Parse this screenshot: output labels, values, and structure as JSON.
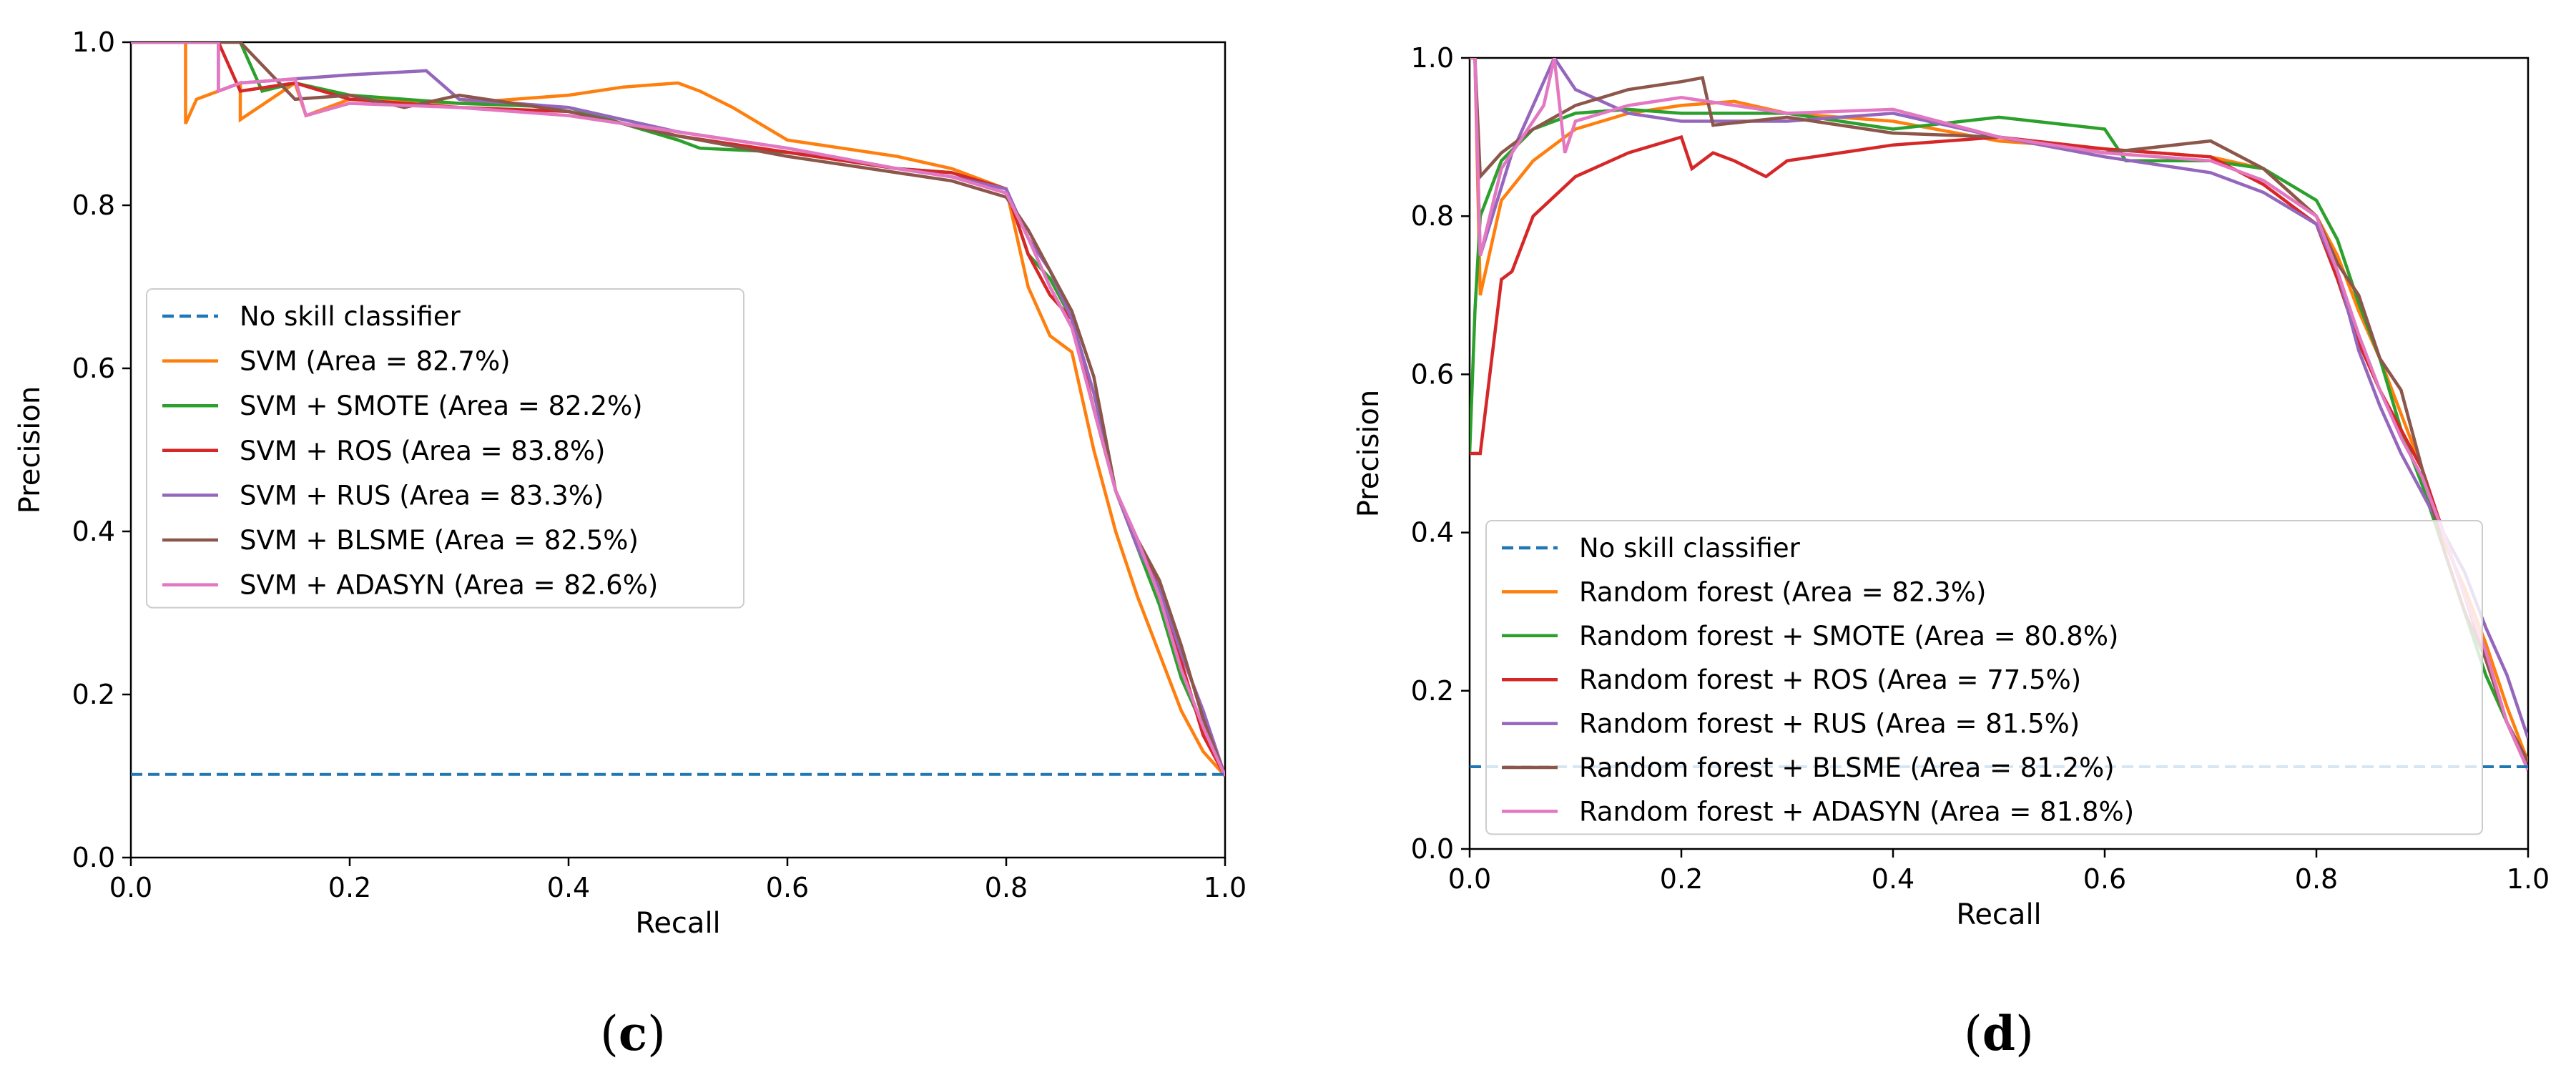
{
  "chart_data": [
    {
      "type": "line",
      "panel_label": "c",
      "title": "",
      "xlabel": "Recall",
      "ylabel": "Precision",
      "xlim": [
        0.0,
        1.0
      ],
      "ylim": [
        0.0,
        1.0
      ],
      "xticks": [
        "0.0",
        "0.2",
        "0.4",
        "0.6",
        "0.8",
        "1.0"
      ],
      "yticks": [
        "0.0",
        "0.2",
        "0.4",
        "0.6",
        "0.8",
        "1.0"
      ],
      "legend_position": "center-left",
      "baseline": {
        "name": "No skill classifier",
        "y": 0.102,
        "color": "#1f77b4"
      },
      "series": [
        {
          "name": "SVM (Area = 82.7%)",
          "color": "#ff7f0e",
          "x": [
            0.0,
            0.05,
            0.05,
            0.06,
            0.1,
            0.1,
            0.15,
            0.16,
            0.2,
            0.3,
            0.4,
            0.45,
            0.5,
            0.52,
            0.55,
            0.6,
            0.65,
            0.7,
            0.75,
            0.8,
            0.82,
            0.84,
            0.86,
            0.88,
            0.9,
            0.92,
            0.94,
            0.96,
            0.98,
            1.0
          ],
          "y": [
            1.0,
            1.0,
            0.9,
            0.93,
            0.95,
            0.905,
            0.95,
            0.91,
            0.93,
            0.925,
            0.935,
            0.945,
            0.95,
            0.94,
            0.92,
            0.88,
            0.87,
            0.86,
            0.845,
            0.82,
            0.7,
            0.64,
            0.62,
            0.5,
            0.4,
            0.32,
            0.25,
            0.18,
            0.13,
            0.1
          ]
        },
        {
          "name": "SVM + SMOTE (Area = 82.2%)",
          "color": "#2ca02c",
          "x": [
            0.0,
            0.1,
            0.12,
            0.15,
            0.2,
            0.3,
            0.4,
            0.5,
            0.52,
            0.6,
            0.65,
            0.7,
            0.75,
            0.8,
            0.82,
            0.84,
            0.86,
            0.88,
            0.9,
            0.92,
            0.94,
            0.96,
            0.98,
            1.0
          ],
          "y": [
            1.0,
            1.0,
            0.94,
            0.95,
            0.935,
            0.925,
            0.92,
            0.88,
            0.87,
            0.865,
            0.855,
            0.845,
            0.84,
            0.82,
            0.74,
            0.71,
            0.66,
            0.55,
            0.45,
            0.38,
            0.31,
            0.22,
            0.16,
            0.1
          ]
        },
        {
          "name": "SVM + ROS (Area = 83.8%)",
          "color": "#d62728",
          "x": [
            0.0,
            0.08,
            0.1,
            0.15,
            0.2,
            0.3,
            0.4,
            0.5,
            0.6,
            0.7,
            0.75,
            0.8,
            0.82,
            0.84,
            0.86,
            0.88,
            0.9,
            0.92,
            0.94,
            0.96,
            0.98,
            1.0
          ],
          "y": [
            1.0,
            1.0,
            0.94,
            0.95,
            0.93,
            0.92,
            0.915,
            0.885,
            0.865,
            0.845,
            0.84,
            0.82,
            0.74,
            0.69,
            0.66,
            0.55,
            0.45,
            0.39,
            0.33,
            0.24,
            0.15,
            0.1
          ]
        },
        {
          "name": "SVM + RUS (Area = 83.3%)",
          "color": "#9467bd",
          "x": [
            0.0,
            0.08,
            0.08,
            0.1,
            0.15,
            0.2,
            0.27,
            0.3,
            0.4,
            0.5,
            0.6,
            0.7,
            0.75,
            0.8,
            0.82,
            0.84,
            0.86,
            0.88,
            0.9,
            0.92,
            0.94,
            0.96,
            0.98,
            1.0
          ],
          "y": [
            1.0,
            1.0,
            0.94,
            0.95,
            0.955,
            0.96,
            0.965,
            0.93,
            0.92,
            0.89,
            0.87,
            0.845,
            0.835,
            0.82,
            0.76,
            0.72,
            0.66,
            0.57,
            0.45,
            0.38,
            0.33,
            0.25,
            0.18,
            0.1
          ]
        },
        {
          "name": "SVM + BLSME (Area = 82.5%)",
          "color": "#8c564b",
          "x": [
            0.0,
            0.1,
            0.15,
            0.2,
            0.25,
            0.3,
            0.4,
            0.5,
            0.6,
            0.7,
            0.75,
            0.8,
            0.82,
            0.84,
            0.86,
            0.88,
            0.9,
            0.92,
            0.94,
            0.96,
            0.98,
            1.0
          ],
          "y": [
            1.0,
            1.0,
            0.93,
            0.935,
            0.92,
            0.935,
            0.915,
            0.885,
            0.86,
            0.84,
            0.83,
            0.81,
            0.77,
            0.72,
            0.67,
            0.59,
            0.45,
            0.39,
            0.34,
            0.26,
            0.17,
            0.1
          ]
        },
        {
          "name": "SVM + ADASYN (Area = 82.6%)",
          "color": "#e377c2",
          "x": [
            0.0,
            0.08,
            0.08,
            0.1,
            0.15,
            0.16,
            0.2,
            0.3,
            0.4,
            0.5,
            0.6,
            0.7,
            0.75,
            0.8,
            0.82,
            0.84,
            0.86,
            0.88,
            0.9,
            0.92,
            0.94,
            0.96,
            0.98,
            1.0
          ],
          "y": [
            1.0,
            1.0,
            0.94,
            0.95,
            0.955,
            0.91,
            0.925,
            0.92,
            0.91,
            0.89,
            0.87,
            0.845,
            0.835,
            0.815,
            0.76,
            0.7,
            0.65,
            0.55,
            0.45,
            0.39,
            0.32,
            0.23,
            0.16,
            0.1
          ]
        }
      ]
    },
    {
      "type": "line",
      "panel_label": "d",
      "title": "",
      "xlabel": "Recall",
      "ylabel": "Precision",
      "xlim": [
        0.0,
        1.0
      ],
      "ylim": [
        0.0,
        1.0
      ],
      "xticks": [
        "0.0",
        "0.2",
        "0.4",
        "0.6",
        "0.8",
        "1.0"
      ],
      "yticks": [
        "0.0",
        "0.2",
        "0.4",
        "0.6",
        "0.8",
        "1.0"
      ],
      "legend_position": "lower-left",
      "baseline": {
        "name": "No skill classifier",
        "y": 0.104,
        "color": "#1f77b4"
      },
      "series": [
        {
          "name": "Random forest (Area = 82.3%)",
          "color": "#ff7f0e",
          "x": [
            0.0,
            0.005,
            0.01,
            0.03,
            0.06,
            0.1,
            0.15,
            0.2,
            0.25,
            0.3,
            0.4,
            0.5,
            0.6,
            0.7,
            0.75,
            0.8,
            0.82,
            0.84,
            0.86,
            0.88,
            0.9,
            0.92,
            0.94,
            0.96,
            0.98,
            1.0
          ],
          "y": [
            1.0,
            1.0,
            0.7,
            0.82,
            0.87,
            0.91,
            0.93,
            0.94,
            0.945,
            0.93,
            0.92,
            0.895,
            0.885,
            0.875,
            0.86,
            0.8,
            0.75,
            0.68,
            0.62,
            0.55,
            0.48,
            0.39,
            0.33,
            0.26,
            0.18,
            0.11
          ]
        },
        {
          "name": "Random forest + SMOTE (Area = 80.8%)",
          "color": "#2ca02c",
          "x": [
            0.0,
            0.005,
            0.01,
            0.03,
            0.06,
            0.1,
            0.15,
            0.2,
            0.3,
            0.4,
            0.5,
            0.6,
            0.62,
            0.7,
            0.75,
            0.8,
            0.82,
            0.84,
            0.86,
            0.88,
            0.9,
            0.92,
            0.94,
            0.96,
            0.98,
            1.0
          ],
          "y": [
            0.5,
            0.68,
            0.8,
            0.87,
            0.91,
            0.93,
            0.935,
            0.93,
            0.93,
            0.91,
            0.925,
            0.91,
            0.87,
            0.87,
            0.86,
            0.82,
            0.77,
            0.69,
            0.62,
            0.53,
            0.46,
            0.38,
            0.3,
            0.22,
            0.16,
            0.1
          ]
        },
        {
          "name": "Random forest + ROS (Area = 77.5%)",
          "color": "#d62728",
          "x": [
            0.0,
            0.01,
            0.03,
            0.04,
            0.06,
            0.1,
            0.15,
            0.2,
            0.21,
            0.23,
            0.25,
            0.28,
            0.3,
            0.4,
            0.5,
            0.6,
            0.7,
            0.75,
            0.8,
            0.82,
            0.84,
            0.86,
            0.88,
            0.9,
            0.92,
            0.94,
            0.96,
            0.98,
            1.0
          ],
          "y": [
            0.5,
            0.5,
            0.72,
            0.73,
            0.8,
            0.85,
            0.88,
            0.9,
            0.86,
            0.88,
            0.87,
            0.85,
            0.87,
            0.89,
            0.9,
            0.885,
            0.875,
            0.84,
            0.79,
            0.72,
            0.64,
            0.58,
            0.53,
            0.48,
            0.4,
            0.32,
            0.24,
            0.16,
            0.1
          ]
        },
        {
          "name": "Random forest + RUS (Area = 81.5%)",
          "color": "#9467bd",
          "x": [
            0.0,
            0.005,
            0.01,
            0.04,
            0.08,
            0.1,
            0.15,
            0.2,
            0.3,
            0.4,
            0.5,
            0.6,
            0.7,
            0.75,
            0.8,
            0.82,
            0.84,
            0.86,
            0.88,
            0.9,
            0.92,
            0.94,
            0.96,
            0.98,
            1.0
          ],
          "y": [
            1.0,
            1.0,
            0.75,
            0.88,
            1.0,
            0.96,
            0.93,
            0.92,
            0.92,
            0.93,
            0.9,
            0.875,
            0.855,
            0.83,
            0.79,
            0.73,
            0.63,
            0.56,
            0.5,
            0.45,
            0.4,
            0.35,
            0.28,
            0.22,
            0.14
          ]
        },
        {
          "name": "Random forest + BLSME (Area = 81.2%)",
          "color": "#8c564b",
          "x": [
            0.0,
            0.005,
            0.01,
            0.03,
            0.06,
            0.1,
            0.15,
            0.2,
            0.22,
            0.23,
            0.3,
            0.4,
            0.5,
            0.6,
            0.7,
            0.75,
            0.8,
            0.82,
            0.84,
            0.86,
            0.88,
            0.9,
            0.92,
            0.94,
            0.96,
            0.98,
            1.0
          ],
          "y": [
            1.0,
            1.0,
            0.85,
            0.88,
            0.91,
            0.94,
            0.96,
            0.97,
            0.975,
            0.915,
            0.925,
            0.905,
            0.9,
            0.88,
            0.895,
            0.86,
            0.8,
            0.74,
            0.7,
            0.62,
            0.58,
            0.48,
            0.38,
            0.3,
            0.24,
            0.16,
            0.11
          ]
        },
        {
          "name": "Random forest + ADASYN (Area = 81.8%)",
          "color": "#e377c2",
          "x": [
            0.0,
            0.005,
            0.01,
            0.03,
            0.07,
            0.08,
            0.09,
            0.1,
            0.15,
            0.2,
            0.3,
            0.4,
            0.5,
            0.6,
            0.7,
            0.75,
            0.8,
            0.82,
            0.84,
            0.86,
            0.88,
            0.9,
            0.92,
            0.94,
            0.96,
            0.98,
            1.0
          ],
          "y": [
            1.0,
            1.0,
            0.75,
            0.86,
            0.94,
            1.0,
            0.88,
            0.92,
            0.94,
            0.95,
            0.93,
            0.935,
            0.9,
            0.88,
            0.87,
            0.845,
            0.8,
            0.73,
            0.65,
            0.58,
            0.52,
            0.47,
            0.4,
            0.32,
            0.25,
            0.16,
            0.1
          ]
        }
      ]
    }
  ]
}
